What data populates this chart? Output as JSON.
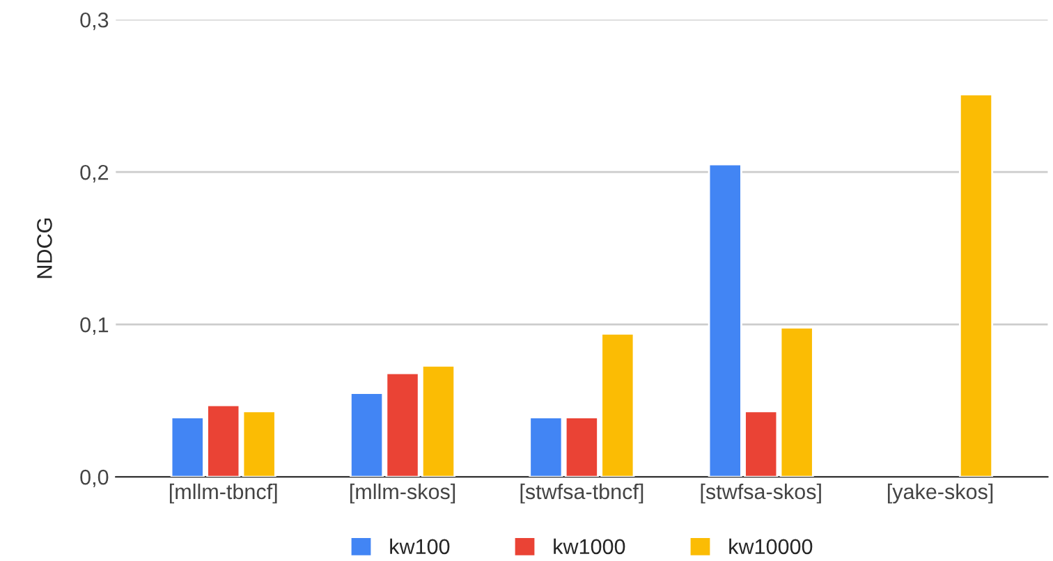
{
  "chart_data": {
    "type": "bar",
    "ylabel": "NDCG",
    "categories": [
      "[mllm-tbncf]",
      "[mllm-skos]",
      "[stwfsa-tbncf]",
      "[stwfsa-skos]",
      "[yake-skos]"
    ],
    "series": [
      {
        "name": "kw100",
        "color": "#4285f4",
        "values": [
          0.039,
          0.055,
          0.039,
          0.205,
          null
        ]
      },
      {
        "name": "kw1000",
        "color": "#ea4335",
        "values": [
          0.047,
          0.068,
          0.039,
          0.043,
          null
        ]
      },
      {
        "name": "kw10000",
        "color": "#fbbc04",
        "values": [
          0.043,
          0.073,
          0.094,
          0.098,
          0.251
        ]
      }
    ],
    "ylim": [
      0,
      0.3
    ],
    "yticks": [
      {
        "value": 0,
        "label": "0,0"
      },
      {
        "value": 0.1,
        "label": "0,1"
      },
      {
        "value": 0.2,
        "label": "0,2"
      },
      {
        "value": 0.3,
        "label": "0,3"
      }
    ],
    "grid": "y",
    "legend": "bottom"
  }
}
